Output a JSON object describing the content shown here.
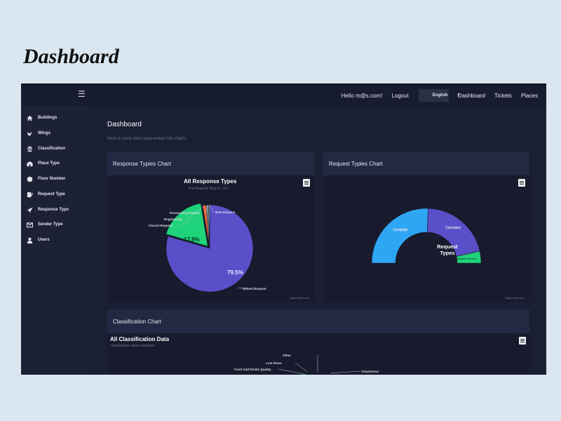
{
  "page_heading": "Dashboard",
  "topbar": {
    "greeting": "Hello m@s.com!",
    "logout": "Logout",
    "language": "English",
    "nav": [
      "Dashboard",
      "Tickets",
      "Places"
    ]
  },
  "sidebar": {
    "items": [
      {
        "label": "Buildings",
        "icon": "home-icon"
      },
      {
        "label": "Wings",
        "icon": "bird-icon"
      },
      {
        "label": "Classification",
        "icon": "layers-icon"
      },
      {
        "label": "Place Type",
        "icon": "building-icon"
      },
      {
        "label": "Floor Number",
        "icon": "cube-icon"
      },
      {
        "label": "Request Type",
        "icon": "edit-icon"
      },
      {
        "label": "Response Type",
        "icon": "send-icon"
      },
      {
        "label": "Sender Type",
        "icon": "envelope-icon"
      },
      {
        "label": "Users",
        "icon": "user-icon"
      }
    ]
  },
  "main": {
    "title": "Dashboard",
    "subtitle": "Here is some data represented into charts."
  },
  "cards": {
    "response": {
      "header": "Response Typies Chart"
    },
    "request": {
      "header": "Request Typies Chart"
    },
    "classification": {
      "header": "Classification Chart"
    }
  },
  "credit": "Highcharts.com",
  "colors": {
    "purple": "#5a4fc9",
    "green": "#1fd37a",
    "blue": "#2fa6f4",
    "orange": "#f26a3b"
  },
  "chart_data": [
    {
      "type": "pie",
      "title": "All Response Types",
      "subtitle": "The Request Total is : 112",
      "slices": [
        {
          "name": "Solved Request",
          "value": 79.5,
          "label": "79.5%"
        },
        {
          "name": "Closed Request",
          "value": 17.9,
          "label": "17.9%"
        },
        {
          "name": "Engineering",
          "value": 1.3
        },
        {
          "name": "Processing Request",
          "value": 0.9
        },
        {
          "name": "New Request",
          "value": 0.4
        }
      ]
    },
    {
      "type": "pie",
      "variant": "semi-donut",
      "title": "Request Types",
      "slices": [
        {
          "name": "Complain",
          "value": 51
        },
        {
          "name": "Comment",
          "value": 42
        },
        {
          "name": "Request Service",
          "value": 7
        }
      ]
    },
    {
      "type": "pie",
      "title": "All Classification Data",
      "subtitle": "classification status numbers",
      "slices": [
        {
          "name": "Other"
        },
        {
          "name": "Lost Items"
        },
        {
          "name": "Food And Drinks Quality"
        },
        {
          "name": "Cleanliness"
        }
      ]
    }
  ]
}
